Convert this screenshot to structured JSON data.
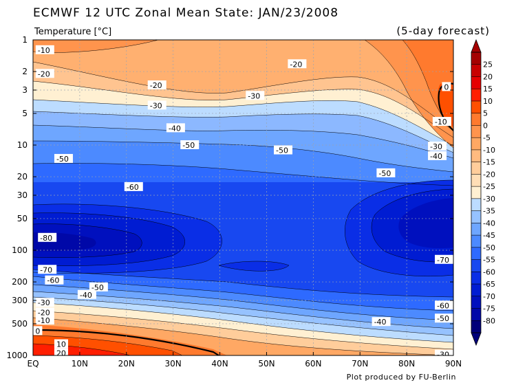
{
  "chart_data": {
    "type": "heatmap",
    "title": "ECMWF 12 UTC Zonal Mean State: JAN/23/2008",
    "quantity_label": "Temperature [°C]",
    "forecast_label": "(5-day forecast)",
    "credit": "Plot produced by FU-Berlin",
    "x_ticks": [
      {
        "v": 0,
        "label": "EQ"
      },
      {
        "v": 10,
        "label": "10N"
      },
      {
        "v": 20,
        "label": "20N"
      },
      {
        "v": 30,
        "label": "30N"
      },
      {
        "v": 40,
        "label": "40N"
      },
      {
        "v": 50,
        "label": "50N"
      },
      {
        "v": 60,
        "label": "60N"
      },
      {
        "v": 70,
        "label": "70N"
      },
      {
        "v": 80,
        "label": "80N"
      },
      {
        "v": 90,
        "label": "90N"
      }
    ],
    "y_ticks": [
      {
        "v": 1,
        "label": "1"
      },
      {
        "v": 2,
        "label": "2"
      },
      {
        "v": 3,
        "label": "3"
      },
      {
        "v": 5,
        "label": "5"
      },
      {
        "v": 10,
        "label": "10"
      },
      {
        "v": 20,
        "label": "20"
      },
      {
        "v": 30,
        "label": "30"
      },
      {
        "v": 50,
        "label": "50"
      },
      {
        "v": 100,
        "label": "100"
      },
      {
        "v": 200,
        "label": "200"
      },
      {
        "v": 300,
        "label": "300"
      },
      {
        "v": 500,
        "label": "500"
      },
      {
        "v": 1000,
        "label": "1000"
      }
    ],
    "xlim": [
      0,
      90
    ],
    "ylim": [
      1,
      1000
    ],
    "y_scale": "log",
    "y_inverted": true,
    "grid": true,
    "colorbar": {
      "levels": [
        25,
        20,
        15,
        10,
        5,
        0,
        -5,
        -10,
        -15,
        -20,
        -25,
        -30,
        -35,
        -40,
        -45,
        -50,
        -55,
        -60,
        -65,
        -70,
        -75,
        -80
      ],
      "labels": [
        "25",
        "20",
        "15",
        "10",
        "5",
        "0",
        "-5",
        "-10",
        "-15",
        "-20",
        "-25",
        "-30",
        "-35",
        "-40",
        "-45",
        "-50",
        "-55",
        "-60",
        "-65",
        "-70",
        "-75",
        "-80"
      ],
      "colors": [
        "#a50000",
        "#c80000",
        "#e60000",
        "#ff1e00",
        "#ff5000",
        "#ff7a2e",
        "#ff944d",
        "#ffa864",
        "#ffbb80",
        "#ffcd9b",
        "#ffdeb6",
        "#fff0d2",
        "#bcdcff",
        "#96c2ff",
        "#6ea6ff",
        "#4c8aff",
        "#2e6aff",
        "#1848f0",
        "#0a2ee6",
        "#001cd2",
        "#0010be",
        "#0008a8",
        "#00007a"
      ]
    },
    "contour_labels": [
      {
        "lat": 1,
        "p": 1.25,
        "text": "-10"
      },
      {
        "lat": 1,
        "p": 2.1,
        "text": "-20"
      },
      {
        "lat": 25,
        "p": 2.7,
        "text": "-20"
      },
      {
        "lat": 55,
        "p": 1.7,
        "text": "-20"
      },
      {
        "lat": 25,
        "p": 4.2,
        "text": "-30"
      },
      {
        "lat": 46,
        "p": 3.4,
        "text": "-30"
      },
      {
        "lat": 29,
        "p": 6.9,
        "text": "-40"
      },
      {
        "lat": 32,
        "p": 10,
        "text": "-50"
      },
      {
        "lat": 52,
        "p": 11.2,
        "text": "-50"
      },
      {
        "lat": 74,
        "p": 18.5,
        "text": "-50"
      },
      {
        "lat": 5,
        "p": 13.5,
        "text": "-50"
      },
      {
        "lat": 20,
        "p": 25,
        "text": "-60"
      },
      {
        "lat": 1.5,
        "p": 76,
        "text": "-80"
      },
      {
        "lat": 1.5,
        "p": 153,
        "text": "-70"
      },
      {
        "lat": 3,
        "p": 193,
        "text": "-60"
      },
      {
        "lat": 12.5,
        "p": 225,
        "text": "-50"
      },
      {
        "lat": 10,
        "p": 265,
        "text": "-40"
      },
      {
        "lat": 1,
        "p": 315,
        "text": "-30"
      },
      {
        "lat": 1,
        "p": 390,
        "text": "-20"
      },
      {
        "lat": 1,
        "p": 465,
        "text": "-10"
      },
      {
        "lat": 0.5,
        "p": 585,
        "text": "0"
      },
      {
        "lat": 5,
        "p": 780,
        "text": "10"
      },
      {
        "lat": 5,
        "p": 950,
        "text": "20"
      },
      {
        "lat": 88,
        "p": 2.8,
        "text": "0"
      },
      {
        "lat": 86,
        "p": 6,
        "text": "-10"
      },
      {
        "lat": 85,
        "p": 10.3,
        "text": "-30"
      },
      {
        "lat": 85,
        "p": 12.7,
        "text": "-40"
      },
      {
        "lat": 88,
        "p": 123,
        "text": "-70"
      },
      {
        "lat": 88,
        "p": 335,
        "text": "-60"
      },
      {
        "lat": 88,
        "p": 445,
        "text": "-50"
      },
      {
        "lat": 73,
        "p": 480,
        "text": "-40"
      },
      {
        "lat": 88,
        "p": 980,
        "text": "-30"
      }
    ]
  }
}
